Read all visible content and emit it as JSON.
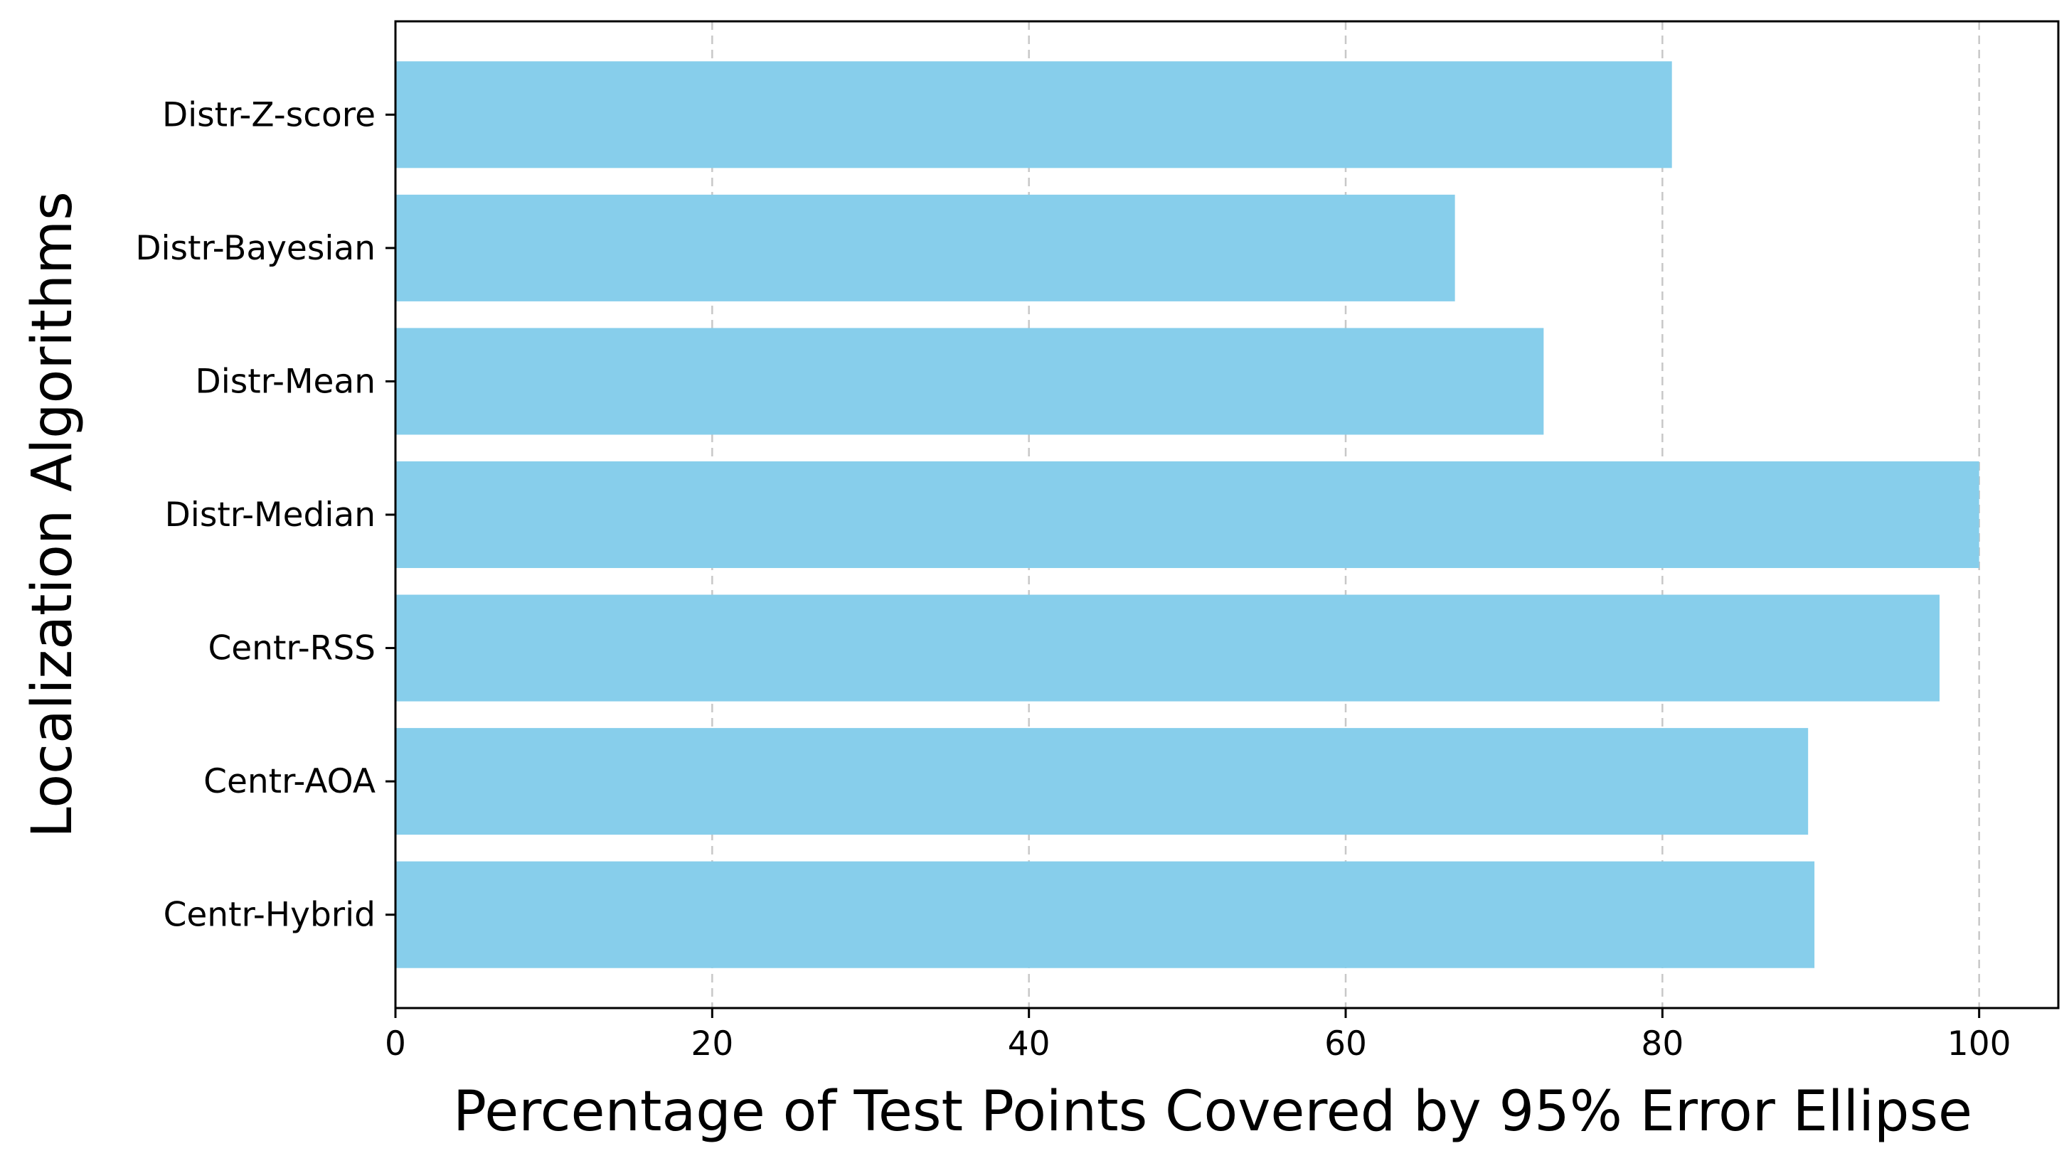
{
  "chart_data": {
    "type": "bar",
    "orientation": "horizontal",
    "categories": [
      "Centr-Hybrid",
      "Centr-AOA",
      "Centr-RSS",
      "Distr-Median",
      "Distr-Mean",
      "Distr-Bayesian",
      "Distr-Z-score"
    ],
    "values": [
      89.6,
      89.2,
      97.5,
      100.0,
      72.5,
      66.9,
      80.6
    ],
    "xlabel": "Percentage of Test Points Covered by 95% Error Ellipse",
    "ylabel": "Localization Algorithms",
    "xlim": [
      0,
      105
    ],
    "xticks": [
      0,
      20,
      40,
      60,
      80,
      100
    ],
    "xtick_labels": [
      "0",
      "20",
      "40",
      "60",
      "80",
      "100"
    ],
    "grid": "x-axis dashed",
    "bar_color": "#87ceeb",
    "grid_color": "#c8c8c8"
  }
}
